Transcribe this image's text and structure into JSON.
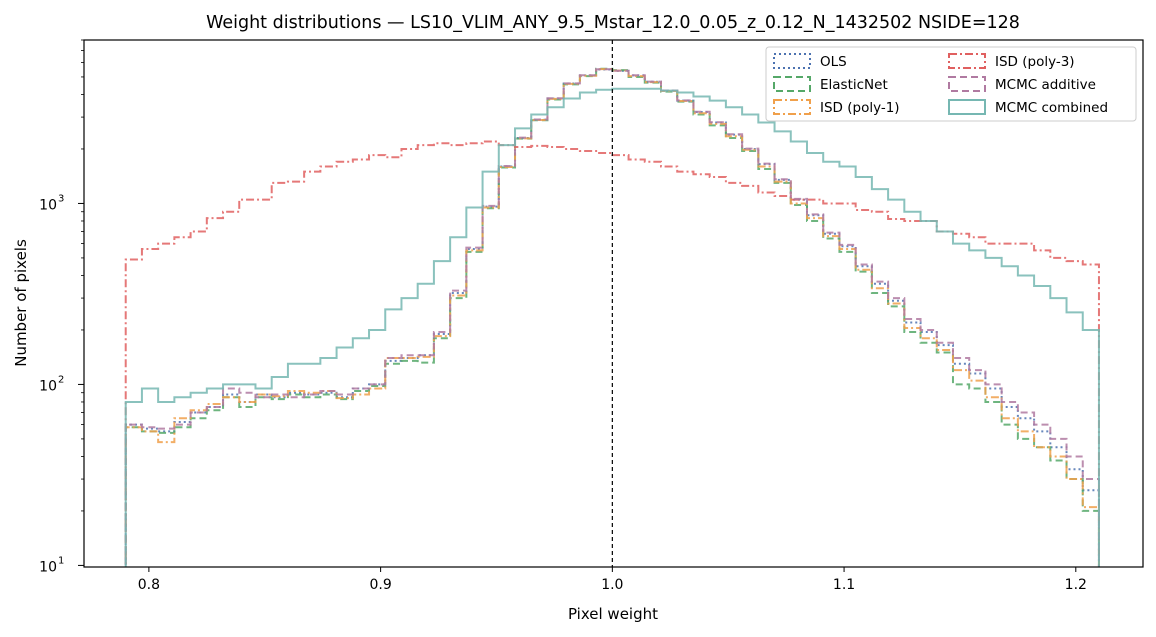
{
  "chart_data": {
    "type": "line",
    "title": "Weight distributions — LS10_VLIM_ANY_9.5_Mstar_12.0_0.05_z_0.12_N_1432502  NSIDE=128",
    "xlabel": "Pixel weight",
    "ylabel": "Number of pixels",
    "xlim": [
      0.772,
      1.229
    ],
    "ylim": [
      9.8,
      8000
    ],
    "yscale": "log",
    "xticks": [
      0.8,
      0.9,
      1.0,
      1.1,
      1.2
    ],
    "xtick_labels": [
      "0.8",
      "0.9",
      "1.0",
      "1.1",
      "1.2"
    ],
    "yticks": [
      10,
      100,
      1000
    ],
    "ytick_base": "10",
    "ytick_exponents": [
      "1",
      "2",
      "3"
    ],
    "vline": 1.0,
    "legend_position": "top-right",
    "bin_edges_range": [
      0.79,
      1.21
    ],
    "bin_count": 60,
    "series": [
      {
        "name": "OLS",
        "color": "#4c72b0",
        "dash": "dotted",
        "values": [
          60,
          57,
          55,
          62,
          70,
          75,
          88,
          80,
          88,
          85,
          90,
          88,
          90,
          85,
          95,
          100,
          135,
          140,
          145,
          190,
          320,
          560,
          960,
          1600,
          2300,
          2900,
          3800,
          4600,
          5100,
          5500,
          5400,
          5100,
          4700,
          4200,
          3700,
          3200,
          2800,
          2400,
          2000,
          1650,
          1350,
          1050,
          860,
          680,
          580,
          450,
          360,
          290,
          220,
          195,
          165,
          130,
          115,
          95,
          75,
          65,
          55,
          45,
          34,
          26
        ]
      },
      {
        "name": "ElasticNet",
        "color": "#55a868",
        "dash": "dashed",
        "values": [
          58,
          55,
          54,
          58,
          65,
          72,
          85,
          75,
          85,
          83,
          88,
          85,
          88,
          83,
          92,
          98,
          130,
          135,
          132,
          180,
          300,
          540,
          940,
          1580,
          2280,
          2880,
          3750,
          4550,
          5050,
          5550,
          5450,
          5000,
          4650,
          4150,
          3650,
          3100,
          2700,
          2300,
          1950,
          1550,
          1300,
          980,
          800,
          640,
          540,
          420,
          320,
          270,
          195,
          170,
          150,
          100,
          95,
          80,
          60,
          50,
          45,
          38,
          30,
          20
        ]
      },
      {
        "name": "ISD (poly-1)",
        "color": "#f0a04b",
        "dash": "dashdot",
        "values": [
          58,
          55,
          48,
          65,
          72,
          78,
          85,
          80,
          88,
          86,
          92,
          90,
          92,
          84,
          88,
          95,
          140,
          140,
          142,
          185,
          310,
          550,
          950,
          1590,
          2290,
          2890,
          3780,
          4580,
          5080,
          5520,
          5420,
          5050,
          4680,
          4180,
          3680,
          3150,
          2750,
          2350,
          1980,
          1600,
          1320,
          1000,
          830,
          660,
          560,
          430,
          340,
          280,
          205,
          180,
          155,
          120,
          105,
          85,
          65,
          55,
          45,
          40,
          30,
          21
        ]
      },
      {
        "name": "ISD (poly-3)",
        "color": "#e06060",
        "dash": "dashdot",
        "values": [
          490,
          560,
          600,
          650,
          700,
          830,
          900,
          1050,
          1050,
          1300,
          1320,
          1500,
          1600,
          1700,
          1750,
          1850,
          1800,
          2000,
          2100,
          2150,
          2100,
          2150,
          2200,
          2100,
          2050,
          2080,
          2050,
          2000,
          1950,
          1900,
          1850,
          1750,
          1700,
          1600,
          1500,
          1450,
          1400,
          1300,
          1250,
          1150,
          1100,
          1050,
          1050,
          1000,
          1000,
          920,
          900,
          820,
          800,
          800,
          700,
          680,
          650,
          600,
          600,
          600,
          550,
          500,
          480,
          460
        ]
      },
      {
        "name": "MCMC additive",
        "color": "#b07aa1",
        "dash": "dashed",
        "values": [
          60,
          58,
          57,
          60,
          70,
          75,
          95,
          90,
          85,
          88,
          85,
          88,
          92,
          88,
          95,
          100,
          140,
          145,
          145,
          195,
          330,
          570,
          970,
          1610,
          2310,
          2910,
          3810,
          4610,
          5110,
          5510,
          5410,
          5110,
          4710,
          4210,
          3710,
          3210,
          2810,
          2410,
          2010,
          1660,
          1360,
          1060,
          870,
          690,
          590,
          460,
          370,
          300,
          230,
          200,
          170,
          140,
          120,
          100,
          80,
          70,
          60,
          50,
          40,
          30
        ]
      },
      {
        "name": "MCMC combined",
        "color": "#76b7b2",
        "dash": "solid",
        "values": [
          80,
          95,
          80,
          85,
          90,
          95,
          100,
          100,
          95,
          110,
          130,
          130,
          140,
          160,
          180,
          200,
          260,
          300,
          360,
          480,
          650,
          950,
          1500,
          2100,
          2600,
          3100,
          3400,
          3800,
          4100,
          4250,
          4300,
          4300,
          4300,
          4200,
          4100,
          3900,
          3700,
          3400,
          3100,
          2800,
          2500,
          2200,
          1900,
          1700,
          1600,
          1400,
          1200,
          1050,
          900,
          800,
          700,
          600,
          550,
          500,
          450,
          400,
          350,
          300,
          250,
          200
        ]
      }
    ]
  }
}
